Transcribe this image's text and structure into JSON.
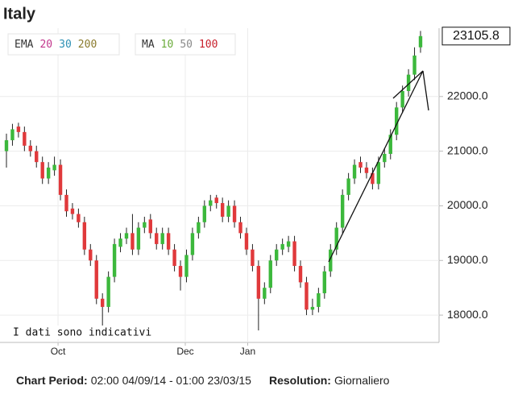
{
  "chart_data": {
    "type": "candlestick",
    "title": "Italy",
    "legend": {
      "ema": {
        "label": "EMA",
        "periods": [
          {
            "text": "20",
            "color": "#c2368c"
          },
          {
            "text": "30",
            "color": "#2b8fb3"
          },
          {
            "text": "200",
            "color": "#8a7a2c"
          }
        ]
      },
      "ma": {
        "label": "MA",
        "periods": [
          {
            "text": "10",
            "color": "#6aab3a"
          },
          {
            "text": "50",
            "color": "#8a8a8a"
          },
          {
            "text": "100",
            "color": "#c8202c"
          }
        ]
      }
    },
    "watermark": "I dati sono indicativi",
    "up_color": "#3cb83c",
    "down_color": "#e0393b",
    "open": [
      21000,
      21200,
      21450,
      21350,
      21100,
      21000,
      20800,
      20500,
      20650,
      20750,
      20200,
      19950,
      19850,
      19700,
      19200,
      19000,
      18300,
      18150,
      18700,
      19250,
      19400,
      19500,
      19200,
      19600,
      19750,
      19500,
      19300,
      19500,
      19200,
      18900,
      18700,
      19100,
      19500,
      19700,
      20000,
      20150,
      20050,
      19800,
      20000,
      19700,
      19500,
      19200,
      18900,
      18300,
      18500,
      19000,
      19200,
      19250,
      19350,
      18900,
      18600,
      18100,
      18150,
      18400,
      18800,
      19200,
      19600,
      20200,
      20500,
      20800,
      20700,
      20600,
      20400,
      20800,
      20950,
      21300,
      21800,
      22100,
      22400,
      22900
    ],
    "high": [
      21320,
      21500,
      21520,
      21450,
      21200,
      21100,
      20900,
      20800,
      20900,
      20850,
      20300,
      20050,
      19950,
      19800,
      19300,
      19100,
      18400,
      18800,
      19400,
      19500,
      19600,
      19850,
      19700,
      19800,
      19850,
      19600,
      19600,
      19600,
      19300,
      19000,
      19200,
      19600,
      19800,
      20100,
      20200,
      20200,
      20150,
      20100,
      20100,
      19800,
      19600,
      19300,
      19000,
      18600,
      19100,
      19300,
      19400,
      19450,
      19450,
      19000,
      18700,
      18300,
      18500,
      18900,
      19300,
      19700,
      20300,
      20600,
      20850,
      20900,
      20800,
      20700,
      20900,
      21050,
      21400,
      21900,
      22200,
      22500,
      22900,
      23200
    ],
    "low": [
      20700,
      21100,
      21250,
      21000,
      20900,
      20700,
      20400,
      20400,
      20550,
      20100,
      19800,
      19750,
      19600,
      19100,
      18900,
      18200,
      17600,
      18050,
      18600,
      19150,
      19300,
      19100,
      19100,
      19500,
      19400,
      19200,
      19200,
      19100,
      18800,
      18450,
      18600,
      19000,
      19400,
      19600,
      19900,
      19950,
      19700,
      19700,
      19600,
      19400,
      19100,
      18800,
      17720,
      18200,
      18400,
      18900,
      19100,
      19150,
      18800,
      18500,
      18000,
      18000,
      18050,
      18300,
      18700,
      19100,
      19500,
      20100,
      20400,
      20600,
      20500,
      20300,
      20300,
      20700,
      20850,
      21200,
      21700,
      22000,
      22300,
      22800
    ],
    "close": [
      21200,
      21400,
      21350,
      21100,
      21000,
      20800,
      20500,
      20700,
      20750,
      20200,
      19900,
      19850,
      19700,
      19200,
      19000,
      18300,
      18150,
      18700,
      19300,
      19400,
      19500,
      19200,
      19600,
      19700,
      19500,
      19300,
      19500,
      19200,
      18900,
      18700,
      19100,
      19500,
      19700,
      20000,
      20100,
      20050,
      19800,
      20000,
      19700,
      19500,
      19200,
      18900,
      18300,
      18500,
      19000,
      19200,
      19300,
      19350,
      18900,
      18600,
      18100,
      18150,
      18400,
      18800,
      19200,
      19600,
      20200,
      20500,
      20750,
      20700,
      20600,
      20400,
      20800,
      20950,
      21300,
      21800,
      22100,
      22400,
      22750,
      23105.8
    ],
    "last_value_label": "23105.8",
    "xticks": [
      {
        "value": 8.6,
        "label": "Oct"
      },
      {
        "value": 29.8,
        "label": "Dec"
      },
      {
        "value": 40.2,
        "label": "Jan"
      }
    ],
    "ylim": [
      17500,
      23250
    ],
    "yticks": [
      {
        "value": 18000,
        "label": "18000.0"
      },
      {
        "value": 19000,
        "label": "19000.0"
      },
      {
        "value": 20000,
        "label": "20000.0"
      },
      {
        "value": 21000,
        "label": "21000.0"
      },
      {
        "value": 22000,
        "label": "22000.0"
      }
    ],
    "grid": true
  },
  "footer": {
    "period_label": "Chart Period:",
    "period": "02:00 04/09/14 - 01:00 23/03/15",
    "resolution_label": "Resolution:",
    "resolution": "Giornaliero"
  }
}
